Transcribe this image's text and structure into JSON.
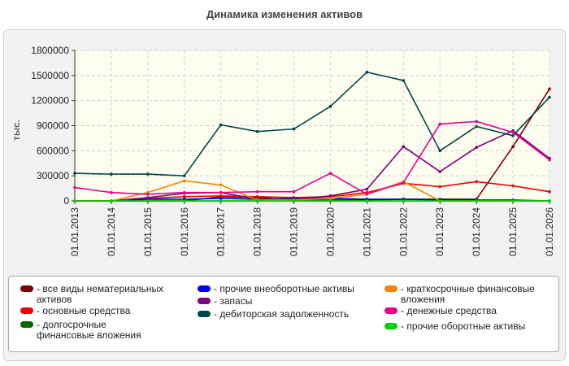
{
  "chart_title": "Динамика изменения активов",
  "chart_data": {
    "type": "line",
    "title": "Динамика изменения активов",
    "ylabel": "тыс.",
    "xlabel": "",
    "ylim": [
      0,
      1800000
    ],
    "yticks": [
      0,
      300000,
      600000,
      900000,
      1200000,
      1500000,
      1800000
    ],
    "categories": [
      "01.01.2013",
      "01.01.2014",
      "01.01.2015",
      "01.01.2016",
      "01.01.2017",
      "01.01.2018",
      "01.01.2019",
      "01.01.2020",
      "01.01.2021",
      "01.01.2022",
      "01.01.2023",
      "01.01.2024",
      "01.01.2025",
      "01.01.2026"
    ],
    "grid": true,
    "legend_position": "bottom",
    "series": [
      {
        "name": "все виды нематериальных активов",
        "color": "#7b0000",
        "values": [
          0,
          0,
          0,
          0,
          50000,
          40000,
          10000,
          10000,
          10000,
          20000,
          20000,
          20000,
          650000,
          1340000
        ]
      },
      {
        "name": "основные средства",
        "color": "#ee0000",
        "values": [
          0,
          0,
          30000,
          50000,
          60000,
          50000,
          40000,
          50000,
          100000,
          210000,
          170000,
          230000,
          180000,
          110000
        ]
      },
      {
        "name": "долгосрочные финансовые вложения",
        "color": "#006a00",
        "values": [
          0,
          0,
          0,
          0,
          0,
          0,
          0,
          0,
          0,
          0,
          0,
          0,
          0,
          0
        ]
      },
      {
        "name": "прочие внеоборотные активы",
        "color": "#0000ee",
        "values": [
          0,
          0,
          20000,
          20000,
          30000,
          20000,
          30000,
          30000,
          20000,
          20000,
          10000,
          10000,
          10000,
          0
        ]
      },
      {
        "name": "запасы",
        "color": "#800080",
        "values": [
          0,
          0,
          40000,
          90000,
          100000,
          20000,
          20000,
          60000,
          140000,
          650000,
          350000,
          640000,
          840000,
          510000
        ]
      },
      {
        "name": "дебиторская задолженность",
        "color": "#004848",
        "values": [
          330000,
          320000,
          320000,
          300000,
          910000,
          830000,
          860000,
          1130000,
          1540000,
          1440000,
          600000,
          890000,
          780000,
          1240000
        ]
      },
      {
        "name": "краткосрочные финансовые вложения",
        "color": "#ff8000",
        "values": [
          0,
          0,
          100000,
          240000,
          190000,
          10000,
          10000,
          30000,
          80000,
          230000,
          0,
          0,
          0,
          0
        ]
      },
      {
        "name": "денежные средства",
        "color": "#e8008a",
        "values": [
          160000,
          100000,
          80000,
          100000,
          100000,
          110000,
          110000,
          330000,
          80000,
          220000,
          920000,
          950000,
          820000,
          490000
        ]
      },
      {
        "name": "прочие оборотные активы",
        "color": "#00d000",
        "values": [
          0,
          0,
          0,
          0,
          0,
          0,
          0,
          0,
          0,
          0,
          0,
          0,
          0,
          0
        ]
      }
    ]
  }
}
